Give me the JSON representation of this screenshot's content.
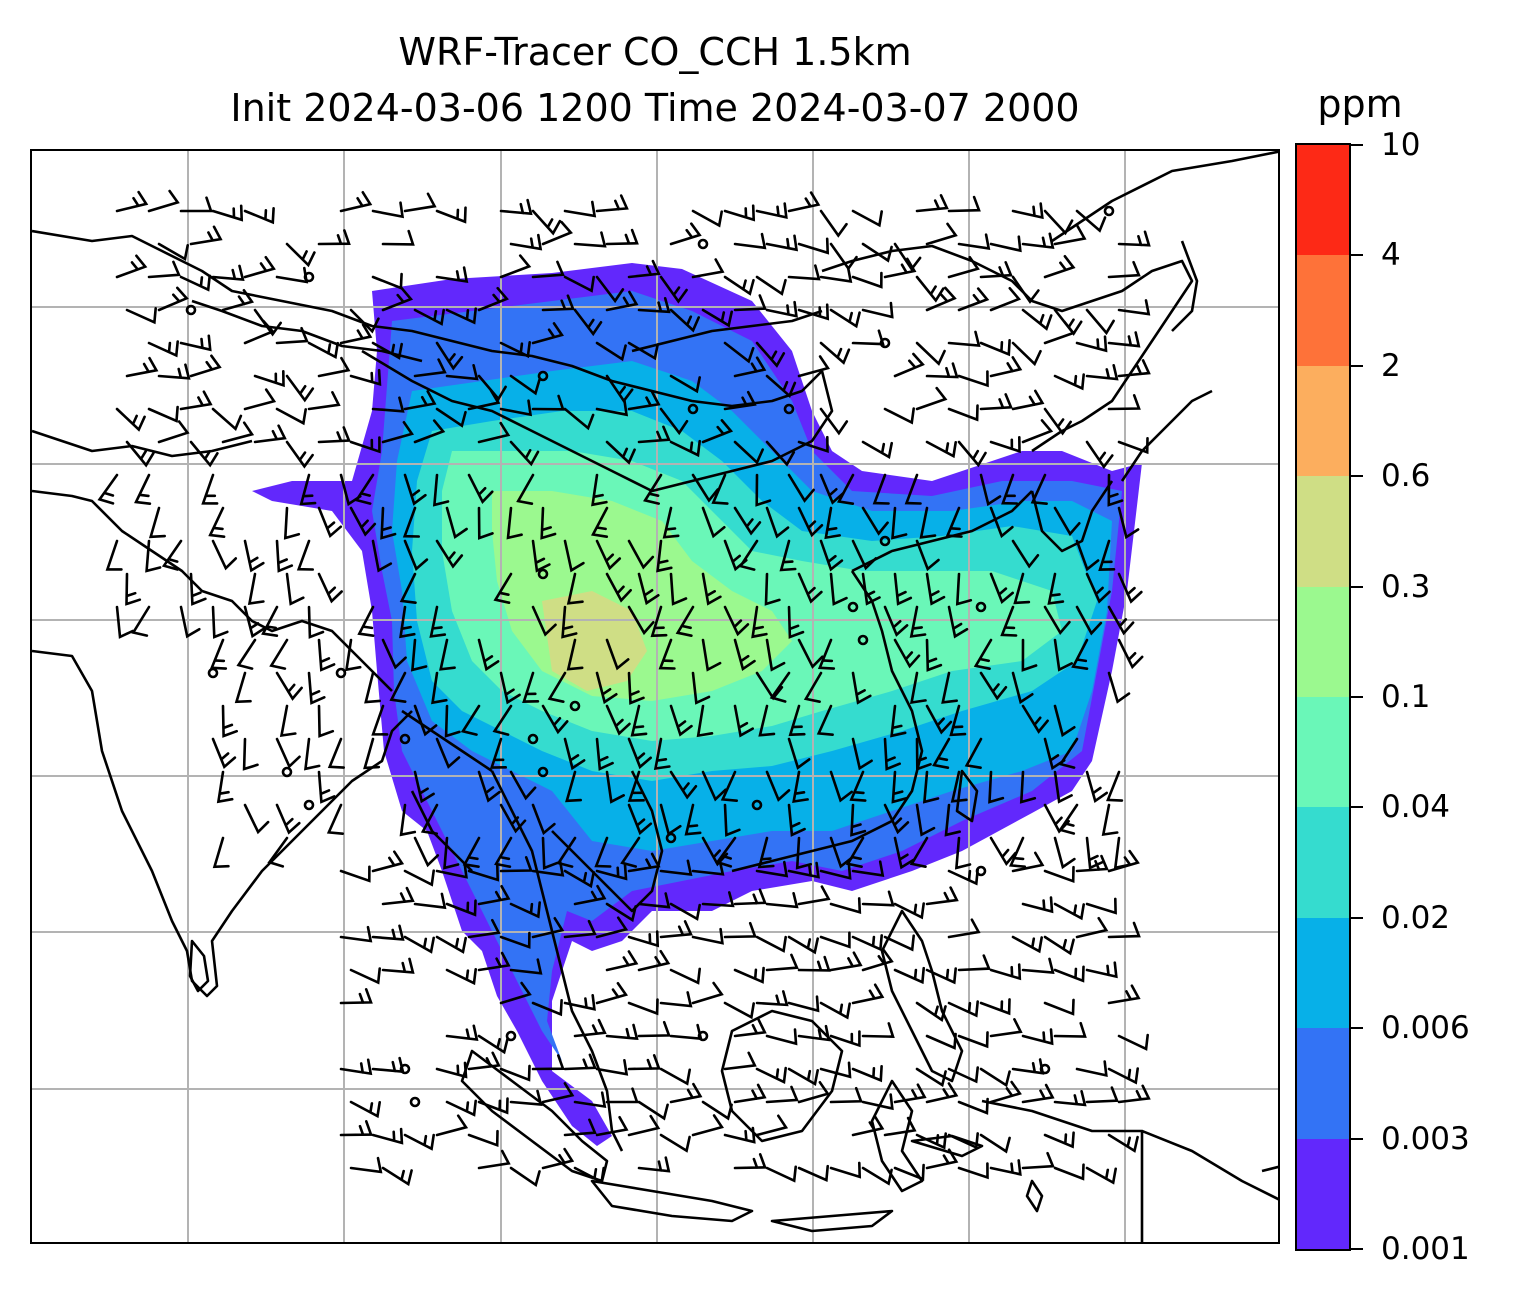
{
  "title": {
    "line1": "WRF-Tracer CO_CCH 1.5km",
    "line2": "Init 2024-03-06 1200 Time 2024-03-07 2000"
  },
  "colorbar": {
    "unit": "ppm",
    "levels": [
      "0.001",
      "0.003",
      "0.006",
      "0.02",
      "0.04",
      "0.1",
      "0.3",
      "0.6",
      "2",
      "4",
      "10"
    ],
    "colors": [
      "#6228fc",
      "#3373f5",
      "#07b0e8",
      "#35dccf",
      "#6af7b8",
      "#9bf98f",
      "#cfde85",
      "#fcae5e",
      "#fe7239",
      "#fd2916"
    ]
  },
  "map": {
    "gridlines": true,
    "grid_color": "#b3b3b3",
    "coastline_color": "#000000",
    "barb_color": "#000000"
  }
}
